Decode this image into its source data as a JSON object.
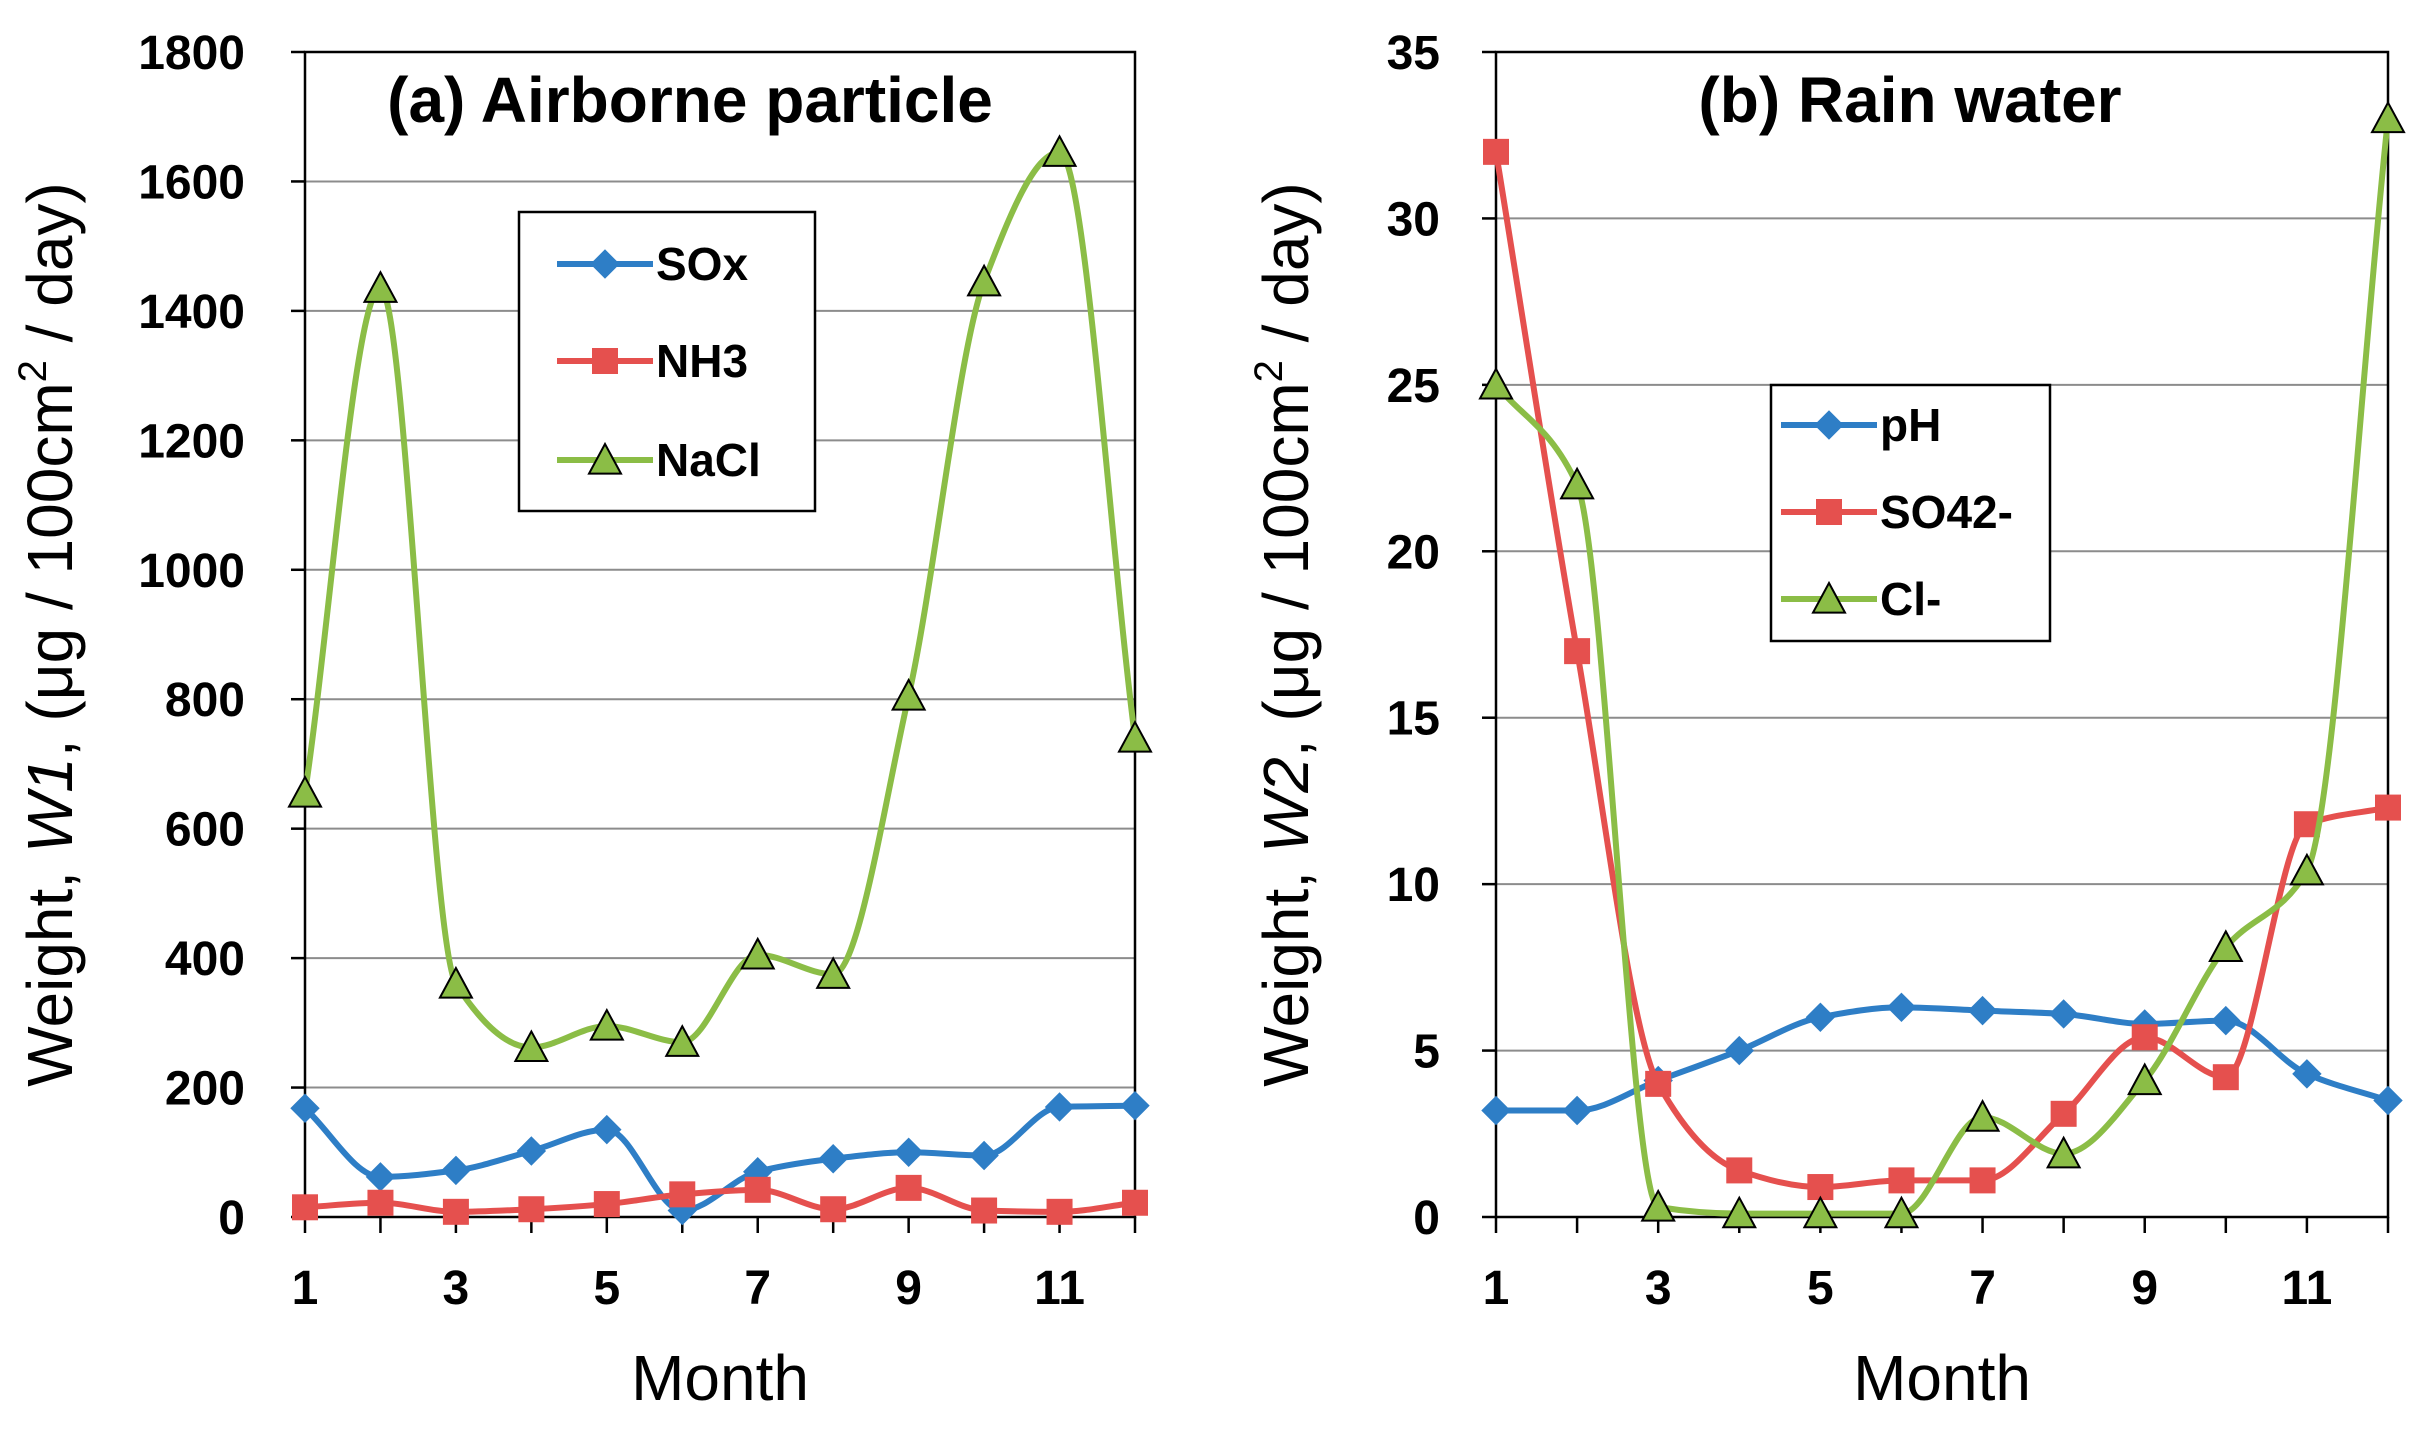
{
  "colors": {
    "blue": "#2e7ec6",
    "red": "#e5504e",
    "green": "#8bbd46",
    "grid": "#8c8c8c"
  },
  "chart_data": [
    {
      "type": "line",
      "title": "(a) Airborne particle",
      "xlabel": "Month",
      "ylabel": "Weight, W1, (μg / 100cm² / day)",
      "ylabel_parts": {
        "pre": "Weight, ",
        "var": "W1",
        "mid": ", (μg / 100cm",
        "sup": "2",
        "post": " / day)"
      },
      "xlim": [
        1,
        12
      ],
      "ylim": [
        0,
        1800
      ],
      "x_ticks": [
        1,
        3,
        5,
        7,
        9,
        11
      ],
      "y_ticks": [
        0,
        200,
        400,
        600,
        800,
        1000,
        1200,
        1400,
        1600,
        1800
      ],
      "grid": "horizontal",
      "legend_position": "upper-center",
      "x": [
        1,
        2,
        3,
        4,
        5,
        6,
        7,
        8,
        9,
        10,
        11,
        12
      ],
      "series": [
        {
          "name": "SOx",
          "color": "#2e7ec6",
          "marker": "diamond",
          "values": [
            168,
            62,
            72,
            102,
            135,
            10,
            70,
            90,
            100,
            95,
            170,
            172
          ]
        },
        {
          "name": "NH3",
          "color": "#e5504e",
          "marker": "square",
          "values": [
            15,
            22,
            8,
            12,
            20,
            35,
            42,
            12,
            45,
            10,
            8,
            22
          ]
        },
        {
          "name": "NaCl",
          "color": "#8bbd46",
          "marker": "triangle",
          "values": [
            655,
            1435,
            360,
            262,
            295,
            270,
            405,
            375,
            805,
            1445,
            1645,
            740
          ]
        }
      ]
    },
    {
      "type": "line",
      "title": "(b) Rain water",
      "xlabel": "Month",
      "ylabel": "Weight, W2, (μg / 100cm² / day)",
      "ylabel_parts": {
        "pre": "Weight, ",
        "var": "W2",
        "mid": ",  (μg / 100cm",
        "sup": "2",
        "post": " / day)"
      },
      "xlim": [
        1,
        12
      ],
      "ylim": [
        0,
        35
      ],
      "x_ticks": [
        1,
        3,
        5,
        7,
        9,
        11
      ],
      "y_ticks": [
        0,
        5,
        10,
        15,
        20,
        25,
        30,
        35
      ],
      "grid": "horizontal",
      "legend_position": "center-right",
      "x": [
        1,
        2,
        3,
        4,
        5,
        6,
        7,
        8,
        9,
        10,
        11,
        12
      ],
      "series": [
        {
          "name": "pH",
          "color": "#2e7ec6",
          "marker": "diamond",
          "values": [
            3.2,
            3.2,
            4.1,
            5.0,
            6.0,
            6.3,
            6.2,
            6.1,
            5.8,
            5.9,
            4.3,
            3.5
          ]
        },
        {
          "name": "SO42-",
          "color": "#e5504e",
          "marker": "square",
          "values": [
            32,
            17,
            4.0,
            1.4,
            0.9,
            1.1,
            1.1,
            3.1,
            5.4,
            4.2,
            11.8,
            12.3
          ]
        },
        {
          "name": "Cl-",
          "color": "#8bbd46",
          "marker": "triangle",
          "values": [
            25,
            22,
            0.3,
            0.1,
            0.1,
            0.1,
            3.0,
            1.9,
            4.1,
            8.1,
            10.4,
            33
          ]
        }
      ]
    }
  ]
}
